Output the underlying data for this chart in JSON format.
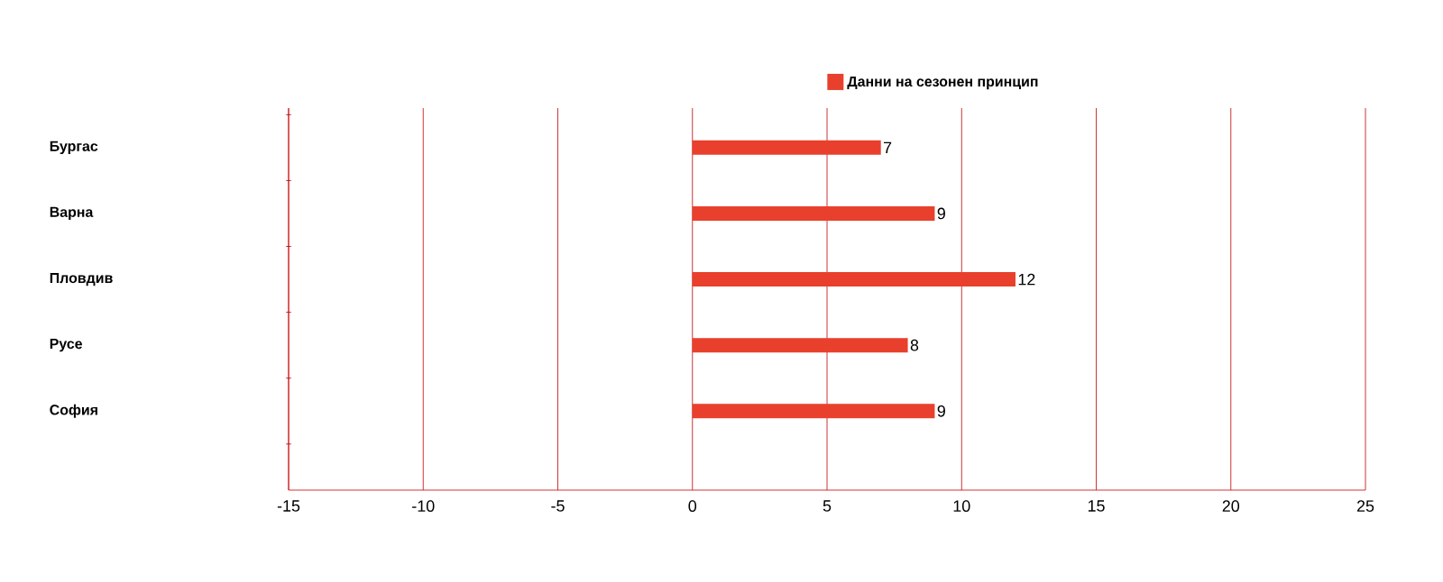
{
  "chart_data": {
    "type": "bar",
    "orientation": "horizontal",
    "categories": [
      "Бургас",
      "Варна",
      "Пловдив",
      "Русе",
      "София"
    ],
    "series": [
      {
        "name": "Данни на сезонен принцип",
        "color": "#e8402c",
        "values": [
          7,
          9,
          12,
          8,
          9
        ]
      }
    ],
    "xlim": [
      -15,
      25
    ],
    "xticks": [
      -15,
      -10,
      -5,
      0,
      5,
      10,
      15,
      20,
      25
    ],
    "grid": "x",
    "legend": "top",
    "data_labels": true
  }
}
